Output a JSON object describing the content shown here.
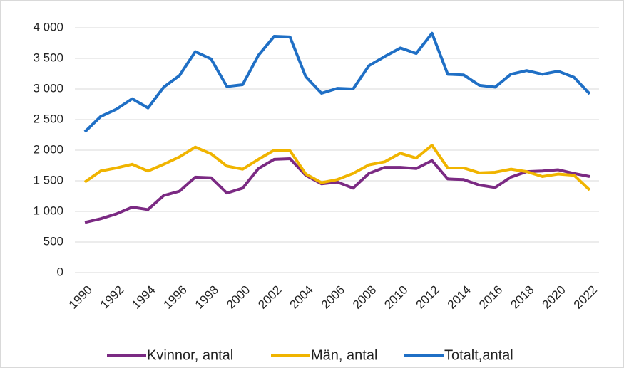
{
  "chart_data": {
    "type": "line",
    "x": [
      1990,
      1991,
      1992,
      1993,
      1994,
      1995,
      1996,
      1997,
      1998,
      1999,
      2000,
      2001,
      2002,
      2003,
      2004,
      2005,
      2006,
      2007,
      2008,
      2009,
      2010,
      2011,
      2012,
      2013,
      2014,
      2015,
      2016,
      2017,
      2018,
      2019,
      2020,
      2021,
      2022
    ],
    "xlim": [
      1990,
      2022
    ],
    "xticks": [
      1990,
      1992,
      1994,
      1996,
      1998,
      2000,
      2002,
      2004,
      2006,
      2008,
      2010,
      2012,
      2014,
      2016,
      2018,
      2020,
      2022
    ],
    "ylim": [
      0,
      4000
    ],
    "yticks": [
      0,
      500,
      {
        "value": 1000,
        "label": "1 000"
      },
      {
        "value": 1500,
        "label": "1 500"
      },
      {
        "value": 2000,
        "label": "2 000"
      },
      {
        "value": 2500,
        "label": "2 500"
      },
      {
        "value": 3000,
        "label": "3 000"
      },
      {
        "value": 3500,
        "label": "3 500"
      },
      {
        "value": 4000,
        "label": "4 000"
      }
    ],
    "grid": true,
    "legend": "bottom",
    "series": [
      {
        "name": "Kvinnor, antal",
        "color": "#7b2a83",
        "values": [
          820,
          880,
          960,
          1070,
          1030,
          1260,
          1330,
          1560,
          1550,
          1300,
          1380,
          1700,
          1850,
          1860,
          1590,
          1450,
          1480,
          1380,
          1620,
          1720,
          1720,
          1700,
          1830,
          1530,
          1520,
          1430,
          1390,
          1560,
          1650,
          1660,
          1680,
          1620,
          1570
        ]
      },
      {
        "name": "Män, antal",
        "color": "#f0b400",
        "values": [
          1480,
          1660,
          1710,
          1770,
          1660,
          1770,
          1890,
          2050,
          1940,
          1740,
          1690,
          1850,
          2000,
          1990,
          1610,
          1470,
          1520,
          1620,
          1760,
          1810,
          1950,
          1870,
          2080,
          1710,
          1710,
          1630,
          1640,
          1690,
          1650,
          1570,
          1610,
          1590,
          1350
        ]
      },
      {
        "name": "Totalt,antal",
        "color": "#1f6fc5",
        "values": [
          2300,
          2550,
          2670,
          2840,
          2690,
          3030,
          3220,
          3610,
          3490,
          3040,
          3070,
          3550,
          3860,
          3850,
          3200,
          2930,
          3010,
          3000,
          3380,
          3530,
          3670,
          3580,
          3910,
          3240,
          3230,
          3060,
          3030,
          3240,
          3300,
          3240,
          3290,
          3190,
          2920
        ]
      }
    ]
  }
}
